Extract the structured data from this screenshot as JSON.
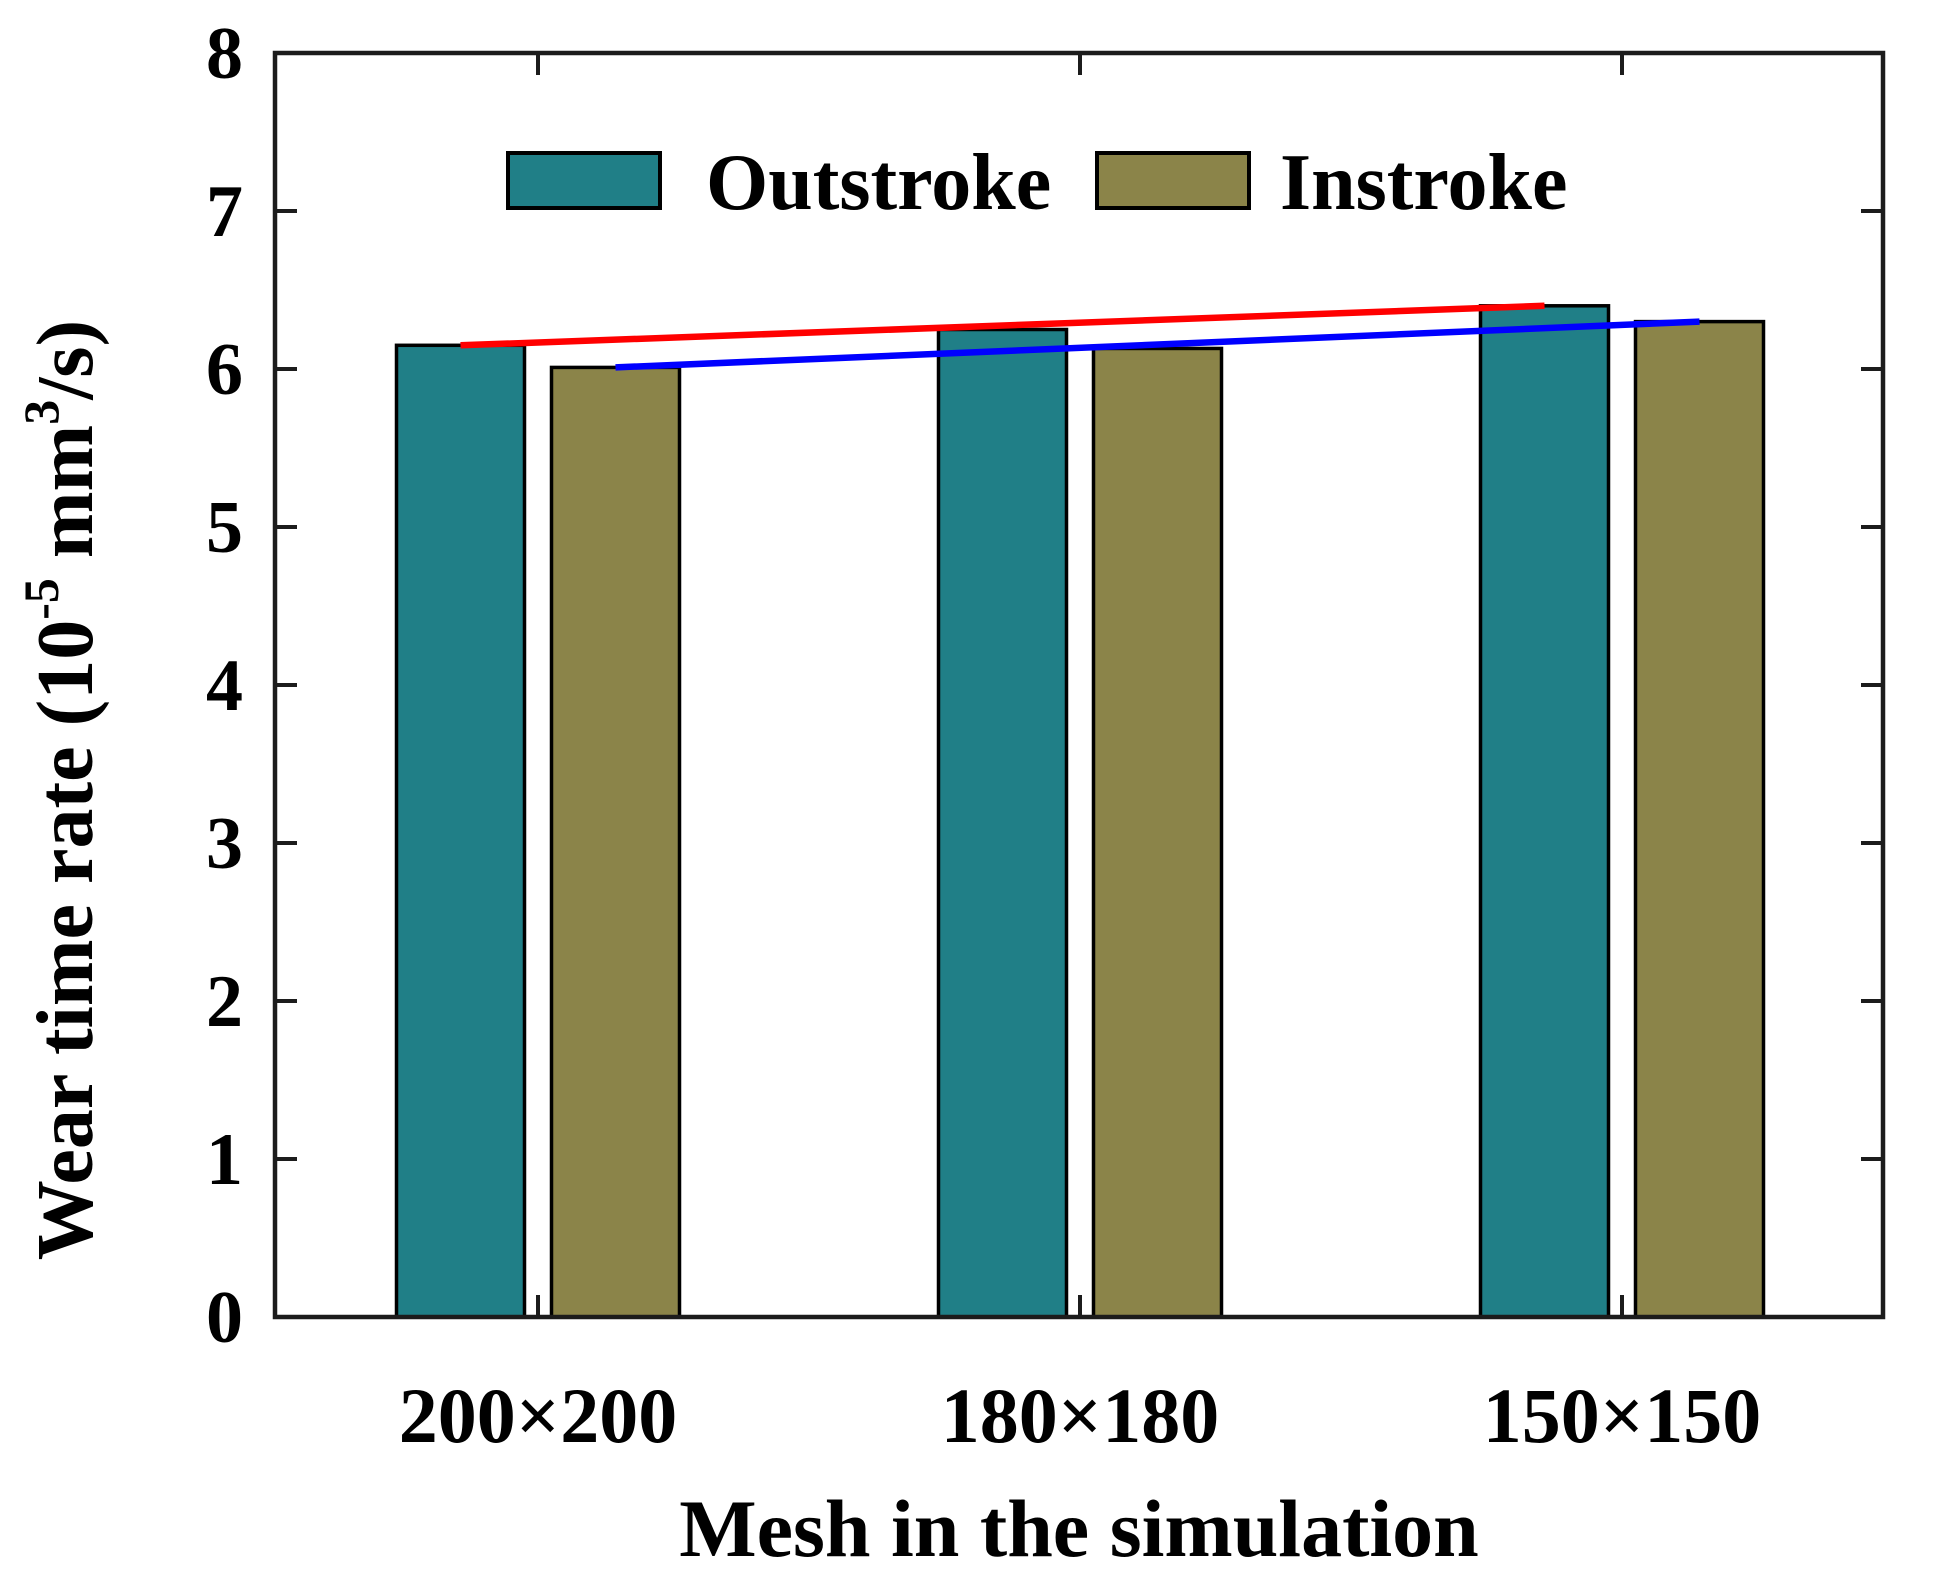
{
  "figure": {
    "background": "#ffffff"
  },
  "chart_data": {
    "type": "bar",
    "title": "",
    "xlabel": "Mesh in the simulation",
    "ylabel": "Wear time rate (10^-5 mm^3/s)",
    "ylabel_parts": [
      {
        "text": "Wear time rate (10",
        "sup": false
      },
      {
        "text": "-5",
        "sup": true
      },
      {
        "text": " mm",
        "sup": false
      },
      {
        "text": "3",
        "sup": true
      },
      {
        "text": "/s)",
        "sup": false
      }
    ],
    "categories": [
      "200×200",
      "180×180",
      "150×150"
    ],
    "series": [
      {
        "name": "Outstroke",
        "color": "#207f87",
        "edge_color": "#000000",
        "values": [
          6.15,
          6.25,
          6.4
        ],
        "trend_line_color": "#ff0000"
      },
      {
        "name": "Instroke",
        "color": "#8b8449",
        "edge_color": "#000000",
        "values": [
          6.01,
          6.13,
          6.3
        ],
        "trend_line_color": "#0000ff"
      }
    ],
    "ylim": [
      0,
      8
    ],
    "yticks": [
      0,
      1,
      2,
      3,
      4,
      5,
      6,
      7,
      8
    ],
    "grid": false,
    "legend": {
      "entries": [
        "Outstroke",
        "Instroke"
      ],
      "position": "top-inside"
    },
    "axis_color": "#1c1c1c",
    "text_color": "#000000"
  }
}
